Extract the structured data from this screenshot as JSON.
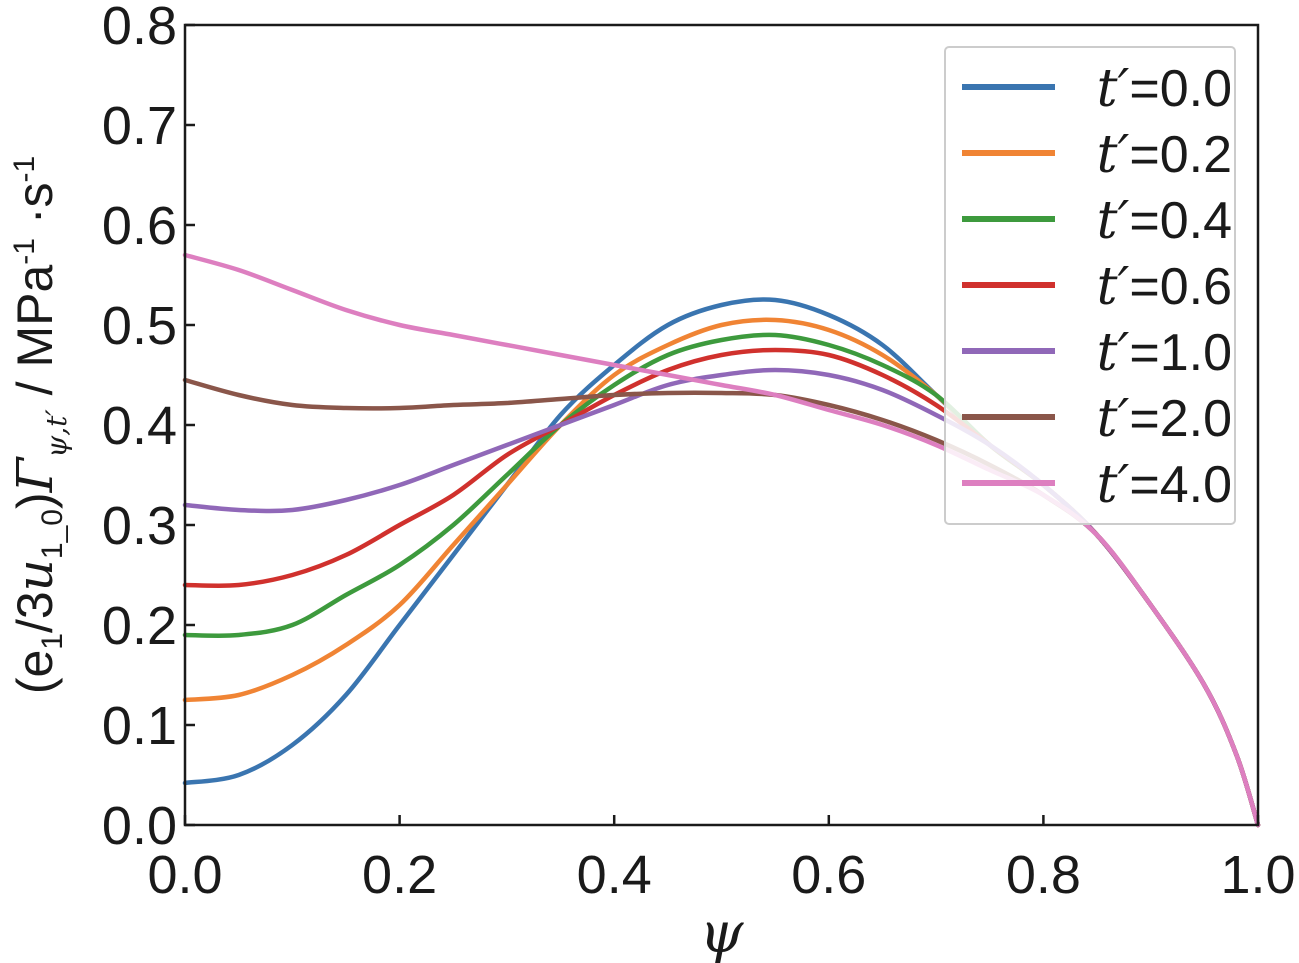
{
  "chart_data": {
    "type": "line",
    "title": "",
    "xlabel": "ψ",
    "ylabel": {
      "prefix": "(e",
      "sub1": "1",
      "mid1": "/3",
      "u": "u",
      "sub2": "1_0",
      "mid2": ")",
      "gamma": "Γ",
      "sub3": "ψ,t′",
      "unit_a": " / MPa",
      "sup1": "-1",
      "unit_b": " ·s",
      "sup2": "-1"
    },
    "xlim": [
      0.0,
      1.0
    ],
    "ylim": [
      0.0,
      0.8
    ],
    "xticks": [
      "0.0",
      "0.2",
      "0.4",
      "0.6",
      "0.8",
      "1.0"
    ],
    "yticks": [
      "0.0",
      "0.1",
      "0.2",
      "0.3",
      "0.4",
      "0.5",
      "0.6",
      "0.7",
      "0.8"
    ],
    "grid": false,
    "legend_position": "top-right",
    "x": [
      0.0,
      0.05,
      0.1,
      0.15,
      0.2,
      0.25,
      0.3,
      0.35,
      0.4,
      0.45,
      0.5,
      0.55,
      0.6,
      0.65,
      0.7,
      0.75,
      0.8,
      0.85,
      0.9,
      0.95,
      0.98,
      1.0
    ],
    "series": [
      {
        "name": "t′=0.0",
        "color": "#3a75b0",
        "values": [
          0.042,
          0.05,
          0.08,
          0.13,
          0.2,
          0.27,
          0.34,
          0.41,
          0.46,
          0.5,
          0.52,
          0.525,
          0.51,
          0.48,
          0.43,
          0.38,
          0.34,
          0.29,
          0.22,
          0.14,
          0.07,
          0.0
        ]
      },
      {
        "name": "t′=0.2",
        "color": "#f08434",
        "values": [
          0.125,
          0.13,
          0.15,
          0.18,
          0.22,
          0.28,
          0.34,
          0.4,
          0.45,
          0.48,
          0.5,
          0.505,
          0.495,
          0.47,
          0.43,
          0.38,
          0.34,
          0.29,
          0.22,
          0.14,
          0.07,
          0.0
        ]
      },
      {
        "name": "t′=0.4",
        "color": "#3d9a3d",
        "values": [
          0.19,
          0.19,
          0.2,
          0.23,
          0.26,
          0.3,
          0.35,
          0.4,
          0.44,
          0.47,
          0.485,
          0.49,
          0.48,
          0.46,
          0.43,
          0.38,
          0.34,
          0.29,
          0.22,
          0.14,
          0.07,
          0.0
        ]
      },
      {
        "name": "t′=0.6",
        "color": "#d0312d",
        "values": [
          0.24,
          0.24,
          0.25,
          0.27,
          0.3,
          0.33,
          0.37,
          0.4,
          0.43,
          0.455,
          0.47,
          0.475,
          0.47,
          0.45,
          0.42,
          0.38,
          0.34,
          0.29,
          0.22,
          0.14,
          0.07,
          0.0
        ]
      },
      {
        "name": "t′=1.0",
        "color": "#9068b8",
        "values": [
          0.32,
          0.315,
          0.315,
          0.325,
          0.34,
          0.36,
          0.38,
          0.4,
          0.42,
          0.44,
          0.45,
          0.455,
          0.45,
          0.435,
          0.41,
          0.38,
          0.34,
          0.29,
          0.22,
          0.14,
          0.07,
          0.0
        ]
      },
      {
        "name": "t′=2.0",
        "color": "#8a564a",
        "values": [
          0.445,
          0.43,
          0.42,
          0.417,
          0.417,
          0.42,
          0.422,
          0.426,
          0.43,
          0.432,
          0.432,
          0.43,
          0.42,
          0.405,
          0.385,
          0.36,
          0.33,
          0.29,
          0.22,
          0.14,
          0.07,
          0.0
        ]
      },
      {
        "name": "t′=4.0",
        "color": "#dd7fc0",
        "values": [
          0.57,
          0.555,
          0.535,
          0.515,
          0.5,
          0.49,
          0.48,
          0.47,
          0.46,
          0.45,
          0.44,
          0.43,
          0.415,
          0.4,
          0.38,
          0.355,
          0.33,
          0.29,
          0.22,
          0.14,
          0.07,
          0.0
        ]
      }
    ]
  }
}
